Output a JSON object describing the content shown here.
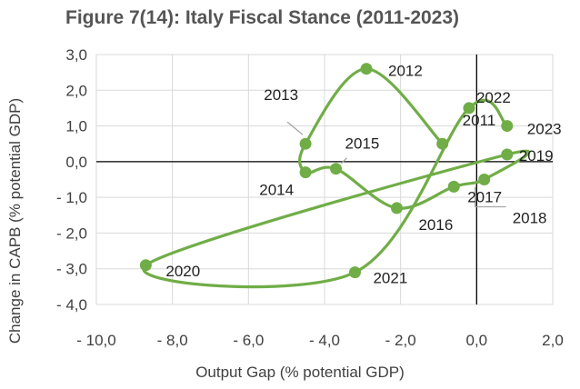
{
  "chart_data": {
    "type": "scatter",
    "title": "Figure 7(14): Italy Fiscal Stance (2011-2023)",
    "xlabel": "Output Gap (% potential GDP)",
    "ylabel": "Change in CAPB (% potential GDP)",
    "xlim": [
      -10,
      2
    ],
    "ylim": [
      -4,
      3
    ],
    "x_ticks": [
      "- 10,0",
      "- 8,0",
      "- 6,0",
      "- 4,0",
      "- 2,0",
      "0,0",
      "2,0"
    ],
    "y_ticks": [
      "3,0",
      "2,0",
      "1,0",
      "0,0",
      "- 1,0",
      "- 2,0",
      "- 3,0",
      "- 4,0"
    ],
    "grid": true,
    "series": [
      {
        "name": "Italy",
        "color": "#70ad47",
        "connected": true,
        "smooth": true,
        "points": [
          {
            "label": "2011",
            "x": -0.9,
            "y": 0.5
          },
          {
            "label": "2012",
            "x": -2.9,
            "y": 2.6
          },
          {
            "label": "2013",
            "x": -4.5,
            "y": 0.5
          },
          {
            "label": "2014",
            "x": -4.5,
            "y": -0.3
          },
          {
            "label": "2015",
            "x": -3.7,
            "y": -0.2
          },
          {
            "label": "2016",
            "x": -2.1,
            "y": -1.3
          },
          {
            "label": "2017",
            "x": -0.6,
            "y": -0.7
          },
          {
            "label": "2018",
            "x": 0.2,
            "y": -0.5,
            "label_color": "#c00000"
          },
          {
            "label": "2019",
            "x": 0.8,
            "y": 0.2
          },
          {
            "label": "2020",
            "x": -8.7,
            "y": -2.9
          },
          {
            "label": "2021",
            "x": -3.2,
            "y": -3.1
          },
          {
            "label": "2022",
            "x": -0.2,
            "y": 1.5
          },
          {
            "label": "2023",
            "x": 0.8,
            "y": 1.0
          }
        ]
      }
    ]
  }
}
